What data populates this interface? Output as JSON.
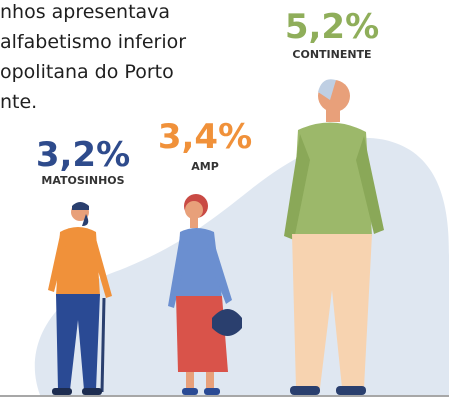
{
  "text_lines": [
    "nhos apresentava",
    "alfabetismo inferior",
    "opolitana do Porto",
    "nte."
  ],
  "stats": [
    {
      "value": "3,2%",
      "label": "MATOSINHOS"
    },
    {
      "value": "3,4%",
      "label": "AMP"
    },
    {
      "value": "5,2%",
      "label": "CONTINENTE"
    }
  ]
}
